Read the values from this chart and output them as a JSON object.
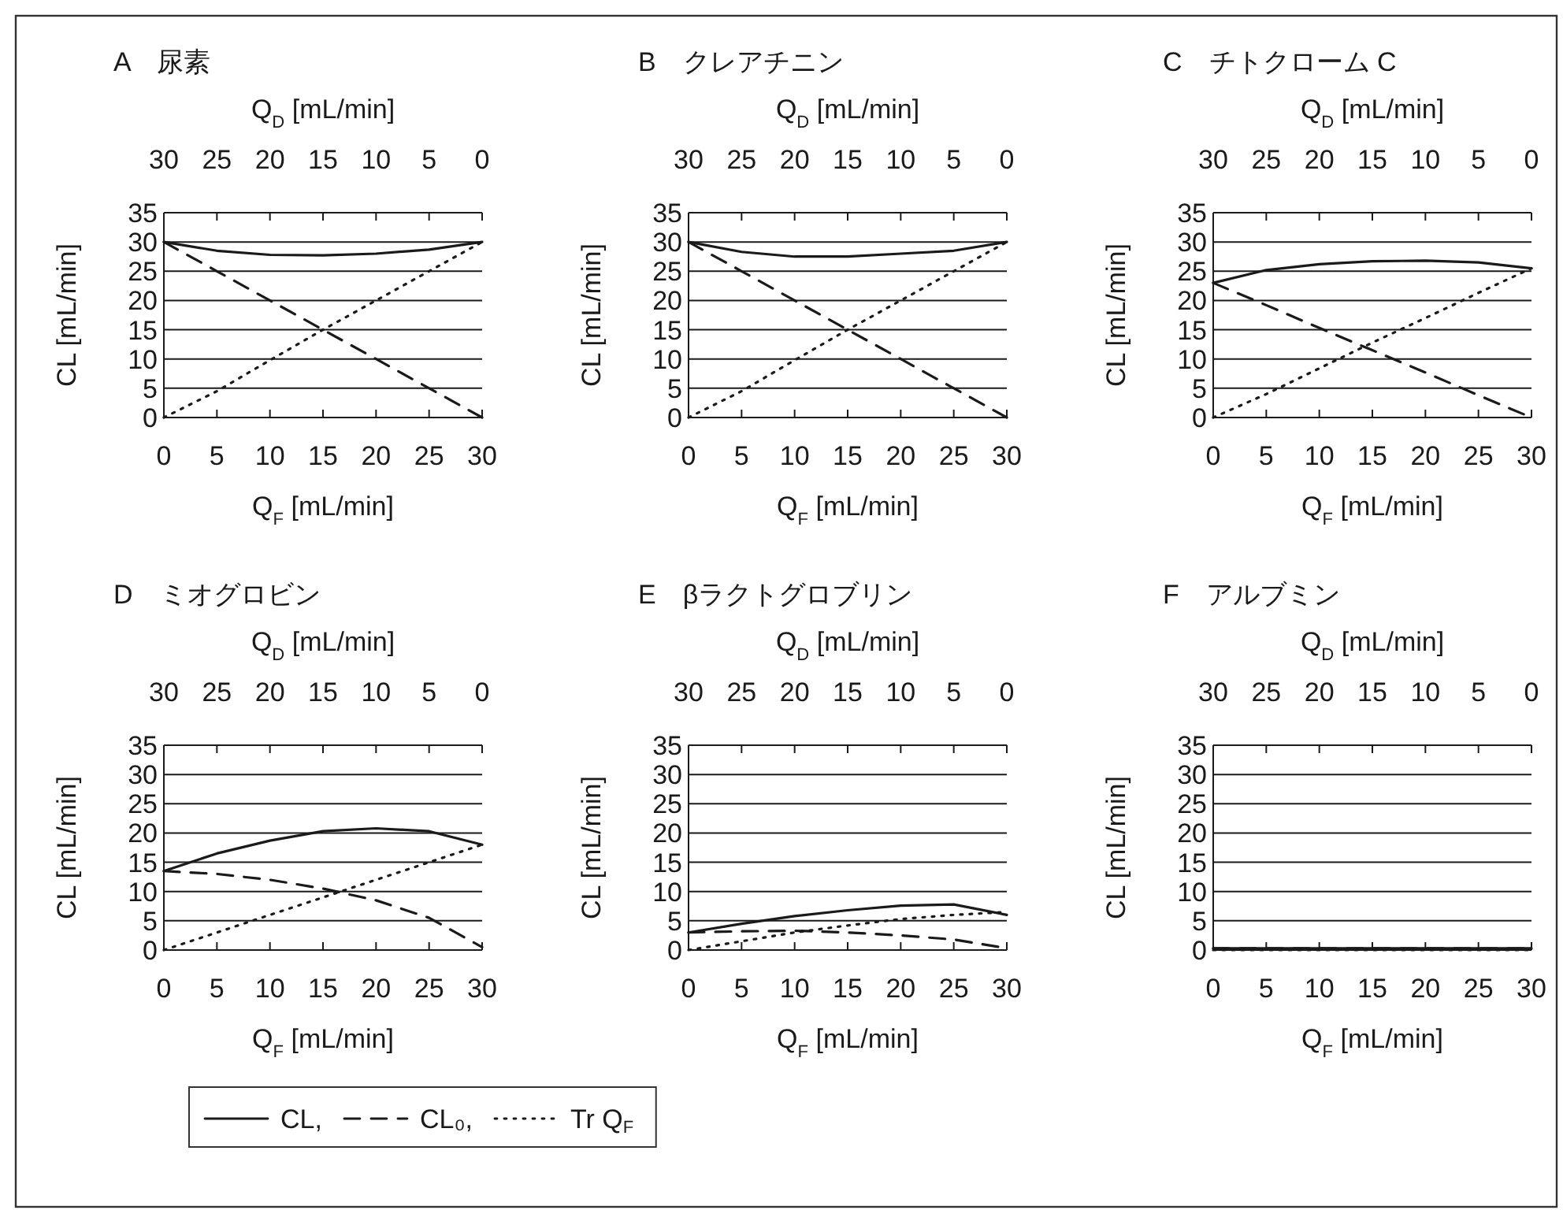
{
  "chart_data": [
    {
      "type": "line",
      "title": "A　尿素",
      "xlabel": "Q$_{F}$ [mL/min]",
      "x2label": "Q$_{D}$ [mL/min]",
      "ylabel": "CL [mL/min]",
      "x": [
        0,
        5,
        10,
        15,
        20,
        25,
        30
      ],
      "xlim": [
        0,
        30
      ],
      "xticks": [
        0,
        5,
        10,
        15,
        20,
        25,
        30
      ],
      "x2lim": [
        30,
        0
      ],
      "x2ticks": [
        30,
        25,
        20,
        15,
        10,
        5,
        0
      ],
      "ylim": [
        0,
        35
      ],
      "yticks": [
        0,
        5,
        10,
        15,
        20,
        25,
        30,
        35
      ],
      "grid": "y",
      "legend": "bottom",
      "series": [
        {
          "name": "CL,",
          "color": "#1a1a1a",
          "line_style": "solid",
          "values": [
            30,
            28.5,
            27.8,
            27.7,
            28,
            28.7,
            30
          ]
        },
        {
          "name": "CL₀,",
          "color": "#1a1a1a",
          "line_style": "dashed",
          "values": [
            30,
            25,
            20,
            15,
            10,
            5,
            0
          ]
        },
        {
          "name": "Tr Q$_{F}$",
          "color": "#1a1a1a",
          "line_style": "dotted",
          "values": [
            0,
            4.5,
            9.8,
            15,
            20,
            25,
            30
          ]
        }
      ]
    },
    {
      "type": "line",
      "title": "B　クレアチニン",
      "xlabel": "Q$_{F}$ [mL/min]",
      "x2label": "Q$_{D}$ [mL/min]",
      "ylabel": "CL [mL/min]",
      "x": [
        0,
        5,
        10,
        15,
        20,
        25,
        30
      ],
      "xlim": [
        0,
        30
      ],
      "xticks": [
        0,
        5,
        10,
        15,
        20,
        25,
        30
      ],
      "x2lim": [
        30,
        0
      ],
      "x2ticks": [
        30,
        25,
        20,
        15,
        10,
        5,
        0
      ],
      "ylim": [
        0,
        35
      ],
      "yticks": [
        0,
        5,
        10,
        15,
        20,
        25,
        30,
        35
      ],
      "grid": "y",
      "series": [
        {
          "color": "#1a1a1a",
          "line_style": "solid",
          "values": [
            30,
            28.3,
            27.5,
            27.5,
            28,
            28.5,
            30
          ]
        },
        {
          "color": "#1a1a1a",
          "line_style": "dashed",
          "values": [
            30,
            25,
            20,
            15,
            10,
            5,
            0
          ]
        },
        {
          "color": "#1a1a1a",
          "line_style": "dotted",
          "values": [
            0,
            4.5,
            9.8,
            15,
            20,
            25,
            30
          ]
        }
      ]
    },
    {
      "type": "line",
      "title": "C　チトクローム C",
      "xlabel": "Q$_{F}$ [mL/min]",
      "x2label": "Q$_{D}$ [mL/min]",
      "ylabel": "CL [mL/min]",
      "x": [
        0,
        5,
        10,
        15,
        20,
        25,
        30
      ],
      "xlim": [
        0,
        30
      ],
      "xticks": [
        0,
        5,
        10,
        15,
        20,
        25,
        30
      ],
      "x2lim": [
        30,
        0
      ],
      "x2ticks": [
        30,
        25,
        20,
        15,
        10,
        5,
        0
      ],
      "ylim": [
        0,
        35
      ],
      "yticks": [
        0,
        5,
        10,
        15,
        20,
        25,
        30,
        35
      ],
      "grid": "y",
      "series": [
        {
          "color": "#1a1a1a",
          "line_style": "solid",
          "values": [
            23,
            25.2,
            26.2,
            26.7,
            26.8,
            26.5,
            25.5
          ]
        },
        {
          "color": "#1a1a1a",
          "line_style": "dashed",
          "values": [
            23,
            19.2,
            15.3,
            11.5,
            7.7,
            3.8,
            0
          ]
        },
        {
          "color": "#1a1a1a",
          "line_style": "dotted",
          "values": [
            0,
            4,
            8.4,
            12.8,
            17,
            21.3,
            25.5
          ]
        }
      ]
    },
    {
      "type": "line",
      "title": "D　ミオグロビン",
      "xlabel": "Q$_{F}$ [mL/min]",
      "x2label": "Q$_{D}$ [mL/min]",
      "ylabel": "CL [mL/min]",
      "x": [
        0,
        5,
        10,
        15,
        20,
        25,
        30
      ],
      "xlim": [
        0,
        30
      ],
      "xticks": [
        0,
        5,
        10,
        15,
        20,
        25,
        30
      ],
      "x2lim": [
        30,
        0
      ],
      "x2ticks": [
        30,
        25,
        20,
        15,
        10,
        5,
        0
      ],
      "ylim": [
        0,
        35
      ],
      "yticks": [
        0,
        5,
        10,
        15,
        20,
        25,
        30,
        35
      ],
      "grid": "y",
      "series": [
        {
          "color": "#1a1a1a",
          "line_style": "solid",
          "values": [
            13.5,
            16.5,
            18.7,
            20.3,
            20.8,
            20.3,
            18
          ]
        },
        {
          "color": "#1a1a1a",
          "line_style": "dashed",
          "values": [
            13.5,
            13,
            12,
            10.5,
            8.5,
            5.5,
            0.5
          ]
        },
        {
          "color": "#1a1a1a",
          "line_style": "dotted",
          "values": [
            0,
            3,
            6,
            9,
            12,
            15,
            18
          ]
        }
      ]
    },
    {
      "type": "line",
      "title": "E　βラクトグロブリン",
      "xlabel": "Q$_{F}$ [mL/min]",
      "x2label": "Q$_{D}$ [mL/min]",
      "ylabel": "CL [mL/min]",
      "x": [
        0,
        5,
        10,
        15,
        20,
        25,
        30
      ],
      "xlim": [
        0,
        30
      ],
      "xticks": [
        0,
        5,
        10,
        15,
        20,
        25,
        30
      ],
      "x2lim": [
        30,
        0
      ],
      "x2ticks": [
        30,
        25,
        20,
        15,
        10,
        5,
        0
      ],
      "ylim": [
        0,
        35
      ],
      "yticks": [
        0,
        5,
        10,
        15,
        20,
        25,
        30,
        35
      ],
      "grid": "y",
      "series": [
        {
          "color": "#1a1a1a",
          "line_style": "solid",
          "values": [
            3,
            4.5,
            5.8,
            6.8,
            7.6,
            7.8,
            6
          ]
        },
        {
          "color": "#1a1a1a",
          "line_style": "dashed",
          "values": [
            3,
            3.2,
            3.3,
            3,
            2.5,
            1.8,
            0.3
          ]
        },
        {
          "color": "#1a1a1a",
          "line_style": "dotted",
          "values": [
            0,
            1.5,
            3,
            4.2,
            5.3,
            6,
            6.5
          ]
        }
      ]
    },
    {
      "type": "line",
      "title": "F　アルブミン",
      "xlabel": "Q$_{F}$ [mL/min]",
      "x2label": "Q$_{D}$ [mL/min]",
      "ylabel": "CL [mL/min]",
      "x": [
        0,
        5,
        10,
        15,
        20,
        25,
        30
      ],
      "xlim": [
        0,
        30
      ],
      "xticks": [
        0,
        5,
        10,
        15,
        20,
        25,
        30
      ],
      "x2lim": [
        30,
        0
      ],
      "x2ticks": [
        30,
        25,
        20,
        15,
        10,
        5,
        0
      ],
      "ylim": [
        0,
        35
      ],
      "yticks": [
        0,
        5,
        10,
        15,
        20,
        25,
        30,
        35
      ],
      "grid": "y",
      "series": [
        {
          "color": "#1a1a1a",
          "line_style": "solid",
          "values": [
            0.3,
            0.3,
            0.3,
            0.3,
            0.3,
            0.3,
            0.3
          ]
        },
        {
          "color": "#1a1a1a",
          "line_style": "dashed",
          "values": [
            0.3,
            0.3,
            0.3,
            0.3,
            0.3,
            0.3,
            0.3
          ]
        },
        {
          "color": "#1a1a1a",
          "line_style": "dotted",
          "values": [
            0,
            0,
            0,
            0,
            0,
            0,
            0
          ]
        }
      ]
    }
  ]
}
